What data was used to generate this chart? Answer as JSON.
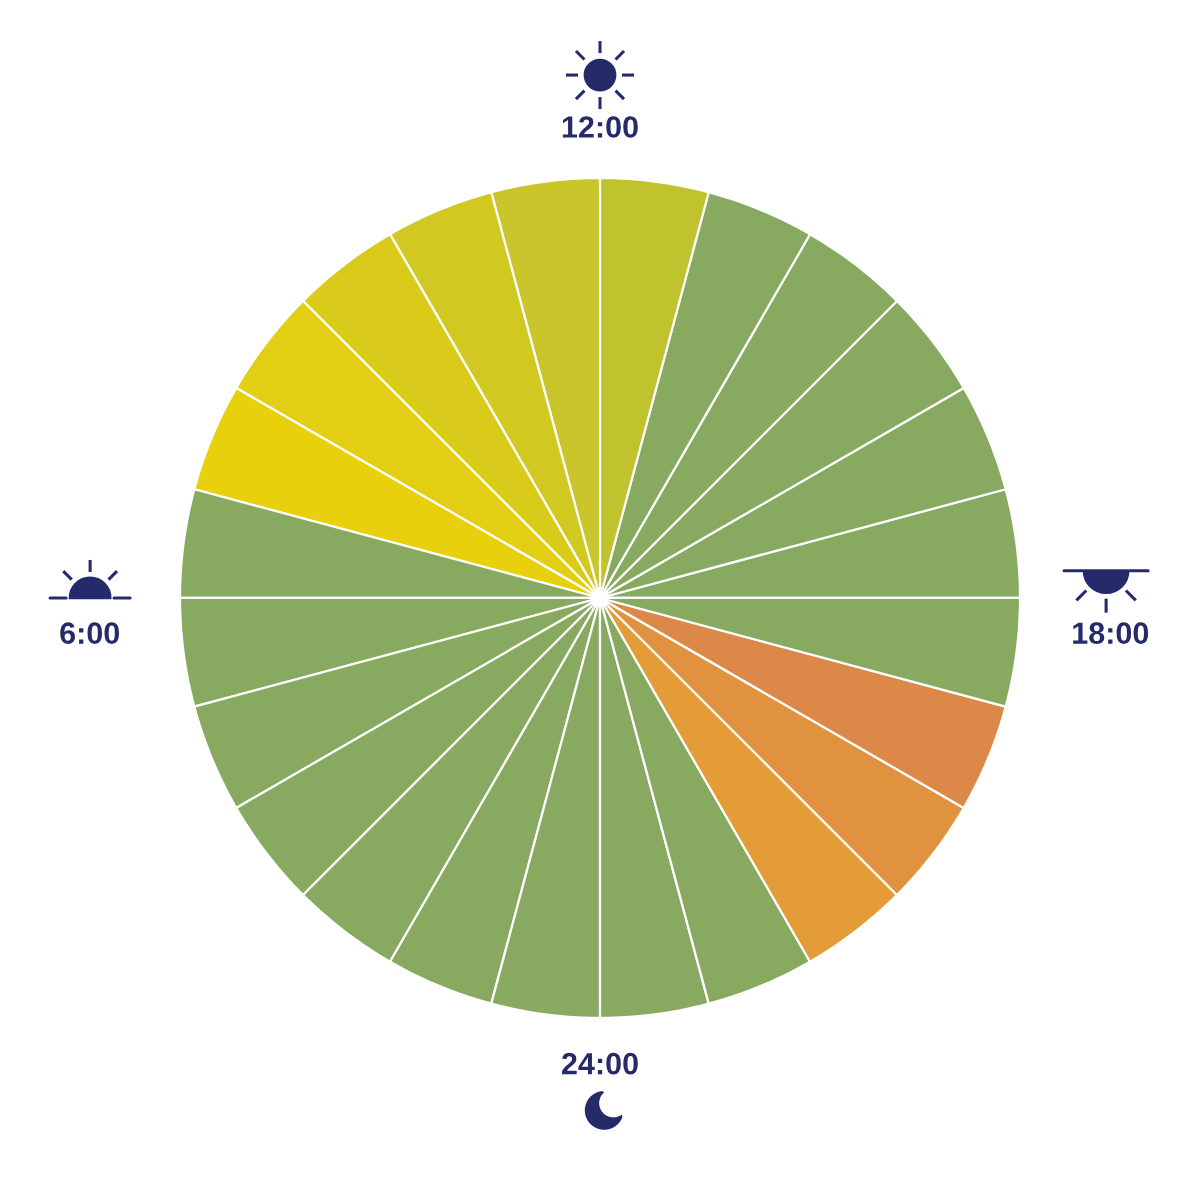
{
  "chart_data": {
    "type": "pie",
    "categories": [
      null,
      null,
      null,
      null,
      null,
      null,
      null,
      null,
      null,
      null,
      null,
      null,
      null,
      null,
      null,
      null,
      null,
      null,
      null,
      null,
      null,
      null,
      null,
      null
    ],
    "values": [
      4.1667,
      4.1667,
      4.1667,
      4.1667,
      4.1667,
      4.1667,
      4.1667,
      4.1667,
      4.1667,
      4.1667,
      4.1667,
      4.1667,
      4.1667,
      4.1667,
      4.1667,
      4.1667,
      4.1667,
      4.1667,
      4.1667,
      4.1667,
      4.1667,
      4.1667,
      4.1667,
      4.1667
    ],
    "colors": [
      "#88aa60",
      "#88aa60",
      "#88aa60",
      "#88aa60",
      "#88aa60",
      "#c0c22e",
      "#c9c52a",
      "#d2c822",
      "#dacb1a",
      "#e2ce12",
      "#e8d00c",
      "#88aa60",
      "#88aa60",
      "#88aa60",
      "#88aa60",
      "#88aa60",
      "#88aa60",
      "#88aa60",
      "#88aa60",
      "#88aa60",
      "#e39c38",
      "#e0923f",
      "#dc8848",
      "#88aa60"
    ],
    "annotations": [
      "12:00",
      "18:00",
      "24:00",
      "6:00"
    ]
  }
}
